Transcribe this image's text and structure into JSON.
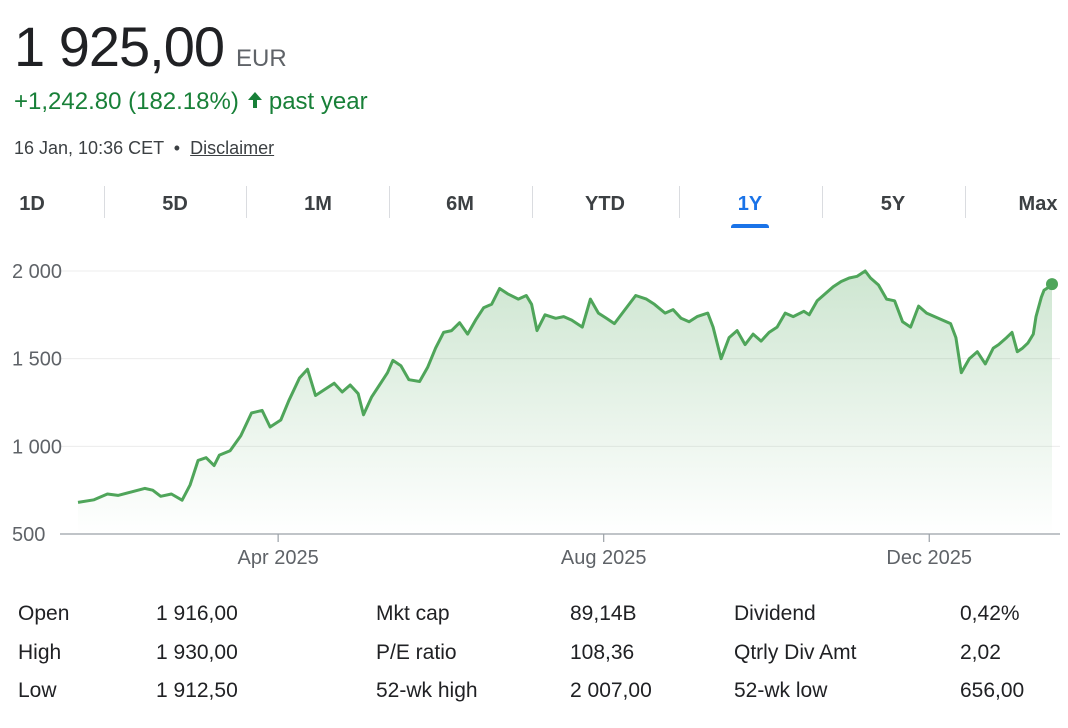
{
  "quote": {
    "price": "1 925,00",
    "currency": "EUR",
    "change": "+1,242.80 (182.18%)",
    "change_arrow": "🡑",
    "change_period": "past year",
    "timestamp": "16 Jan, 10:36 CET",
    "separator": "•",
    "disclaimer": "Disclaimer",
    "positive_color": "#188038"
  },
  "tabs": [
    {
      "label": "1D",
      "active": false
    },
    {
      "label": "5D",
      "active": false
    },
    {
      "label": "1M",
      "active": false
    },
    {
      "label": "6M",
      "active": false
    },
    {
      "label": "YTD",
      "active": false
    },
    {
      "label": "1Y",
      "active": true
    },
    {
      "label": "5Y",
      "active": false
    },
    {
      "label": "Max",
      "active": false
    }
  ],
  "chart_data": {
    "type": "area",
    "title": "",
    "xlabel": "",
    "ylabel": "",
    "ylim": [
      500,
      2040
    ],
    "y_ticks": [
      {
        "value": 500,
        "label": "500"
      },
      {
        "value": 1000,
        "label": "1 000"
      },
      {
        "value": 1500,
        "label": "1 500"
      },
      {
        "value": 2000,
        "label": "2 000"
      }
    ],
    "x_ticks": [
      {
        "date": "2025-04-01",
        "label": "Apr 2025"
      },
      {
        "date": "2025-08-01",
        "label": "Aug 2025"
      },
      {
        "date": "2025-12-01",
        "label": "Dec 2025"
      }
    ],
    "xlim": [
      "2025-01-16",
      "2026-01-16"
    ],
    "grid": true,
    "line_color": "#4fa55a",
    "series": [
      {
        "points": [
          [
            "2025-01-16",
            680
          ],
          [
            "2025-01-22",
            695
          ],
          [
            "2025-01-27",
            728
          ],
          [
            "2025-01-31",
            720
          ],
          [
            "2025-02-05",
            740
          ],
          [
            "2025-02-10",
            760
          ],
          [
            "2025-02-13",
            750
          ],
          [
            "2025-02-16",
            715
          ],
          [
            "2025-02-20",
            728
          ],
          [
            "2025-02-24",
            693
          ],
          [
            "2025-02-27",
            780
          ],
          [
            "2025-03-02",
            920
          ],
          [
            "2025-03-05",
            935
          ],
          [
            "2025-03-08",
            890
          ],
          [
            "2025-03-10",
            950
          ],
          [
            "2025-03-14",
            975
          ],
          [
            "2025-03-18",
            1060
          ],
          [
            "2025-03-22",
            1190
          ],
          [
            "2025-03-26",
            1205
          ],
          [
            "2025-03-29",
            1110
          ],
          [
            "2025-04-02",
            1150
          ],
          [
            "2025-04-05",
            1260
          ],
          [
            "2025-04-09",
            1390
          ],
          [
            "2025-04-12",
            1440
          ],
          [
            "2025-04-15",
            1290
          ],
          [
            "2025-04-18",
            1320
          ],
          [
            "2025-04-22",
            1360
          ],
          [
            "2025-04-25",
            1310
          ],
          [
            "2025-04-28",
            1350
          ],
          [
            "2025-05-01",
            1300
          ],
          [
            "2025-05-03",
            1180
          ],
          [
            "2025-05-06",
            1280
          ],
          [
            "2025-05-09",
            1350
          ],
          [
            "2025-05-12",
            1420
          ],
          [
            "2025-05-14",
            1490
          ],
          [
            "2025-05-17",
            1460
          ],
          [
            "2025-05-20",
            1380
          ],
          [
            "2025-05-24",
            1370
          ],
          [
            "2025-05-27",
            1450
          ],
          [
            "2025-05-30",
            1560
          ],
          [
            "2025-06-02",
            1650
          ],
          [
            "2025-06-05",
            1660
          ],
          [
            "2025-06-08",
            1705
          ],
          [
            "2025-06-11",
            1640
          ],
          [
            "2025-06-14",
            1720
          ],
          [
            "2025-06-17",
            1790
          ],
          [
            "2025-06-20",
            1810
          ],
          [
            "2025-06-23",
            1900
          ],
          [
            "2025-06-26",
            1870
          ],
          [
            "2025-06-30",
            1840
          ],
          [
            "2025-07-03",
            1860
          ],
          [
            "2025-07-05",
            1810
          ],
          [
            "2025-07-07",
            1660
          ],
          [
            "2025-07-10",
            1750
          ],
          [
            "2025-07-14",
            1730
          ],
          [
            "2025-07-17",
            1740
          ],
          [
            "2025-07-20",
            1720
          ],
          [
            "2025-07-24",
            1680
          ],
          [
            "2025-07-27",
            1840
          ],
          [
            "2025-07-30",
            1760
          ],
          [
            "2025-08-02",
            1730
          ],
          [
            "2025-08-05",
            1700
          ],
          [
            "2025-08-09",
            1780
          ],
          [
            "2025-08-13",
            1860
          ],
          [
            "2025-08-17",
            1840
          ],
          [
            "2025-08-20",
            1810
          ],
          [
            "2025-08-24",
            1760
          ],
          [
            "2025-08-27",
            1780
          ],
          [
            "2025-08-30",
            1730
          ],
          [
            "2025-09-02",
            1710
          ],
          [
            "2025-09-05",
            1740
          ],
          [
            "2025-09-09",
            1760
          ],
          [
            "2025-09-11",
            1680
          ],
          [
            "2025-09-14",
            1500
          ],
          [
            "2025-09-17",
            1620
          ],
          [
            "2025-09-20",
            1660
          ],
          [
            "2025-09-23",
            1580
          ],
          [
            "2025-09-26",
            1640
          ],
          [
            "2025-09-29",
            1600
          ],
          [
            "2025-10-02",
            1650
          ],
          [
            "2025-10-05",
            1680
          ],
          [
            "2025-10-08",
            1760
          ],
          [
            "2025-10-11",
            1740
          ],
          [
            "2025-10-15",
            1770
          ],
          [
            "2025-10-17",
            1750
          ],
          [
            "2025-10-20",
            1830
          ],
          [
            "2025-10-23",
            1870
          ],
          [
            "2025-10-26",
            1910
          ],
          [
            "2025-10-29",
            1940
          ],
          [
            "2025-11-01",
            1960
          ],
          [
            "2025-11-04",
            1970
          ],
          [
            "2025-11-07",
            2000
          ],
          [
            "2025-11-09",
            1960
          ],
          [
            "2025-11-12",
            1920
          ],
          [
            "2025-11-15",
            1840
          ],
          [
            "2025-11-18",
            1830
          ],
          [
            "2025-11-21",
            1710
          ],
          [
            "2025-11-24",
            1680
          ],
          [
            "2025-11-27",
            1800
          ],
          [
            "2025-11-30",
            1760
          ],
          [
            "2025-12-03",
            1740
          ],
          [
            "2025-12-06",
            1720
          ],
          [
            "2025-12-09",
            1700
          ],
          [
            "2025-12-11",
            1620
          ],
          [
            "2025-12-13",
            1420
          ],
          [
            "2025-12-16",
            1500
          ],
          [
            "2025-12-19",
            1540
          ],
          [
            "2025-12-22",
            1470
          ],
          [
            "2025-12-25",
            1560
          ],
          [
            "2025-12-27",
            1580
          ],
          [
            "2025-12-30",
            1620
          ],
          [
            "2026-01-01",
            1650
          ],
          [
            "2026-01-03",
            1540
          ],
          [
            "2026-01-05",
            1560
          ],
          [
            "2026-01-07",
            1590
          ],
          [
            "2026-01-09",
            1640
          ],
          [
            "2026-01-10",
            1740
          ],
          [
            "2026-01-12",
            1850
          ],
          [
            "2026-01-13",
            1890
          ],
          [
            "2026-01-14",
            1900
          ],
          [
            "2026-01-16",
            1925
          ]
        ]
      }
    ]
  },
  "stats": {
    "rows": [
      [
        {
          "label": "Open",
          "value": "1 916,00"
        },
        {
          "label": "Mkt cap",
          "value": "89,14B"
        },
        {
          "label": "Dividend",
          "value": "0,42%"
        }
      ],
      [
        {
          "label": "High",
          "value": "1 930,00"
        },
        {
          "label": "P/E ratio",
          "value": "108,36"
        },
        {
          "label": "Qtrly Div Amt",
          "value": "2,02"
        }
      ],
      [
        {
          "label": "Low",
          "value": "1 912,50"
        },
        {
          "label": "52-wk high",
          "value": "2 007,00"
        },
        {
          "label": "52-wk low",
          "value": "656,00"
        }
      ]
    ]
  }
}
